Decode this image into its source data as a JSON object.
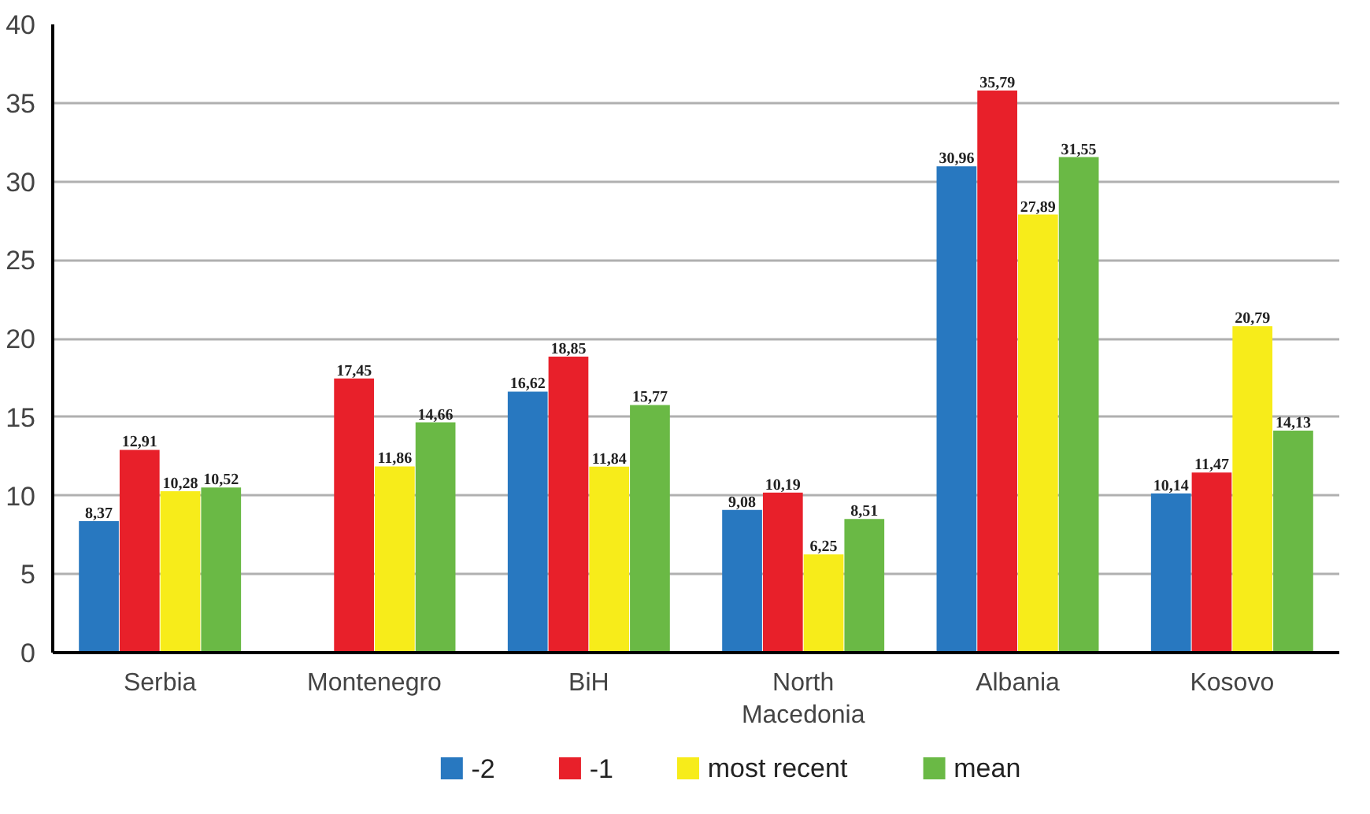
{
  "chart_data": {
    "type": "bar",
    "categories": [
      "Serbia",
      "Montenegro",
      "BiH",
      "North Macedonia",
      "Albania",
      "Kosovo"
    ],
    "series": [
      {
        "name": "-2",
        "color": "#2878c0",
        "values": [
          8.37,
          null,
          16.62,
          9.08,
          30.96,
          10.14
        ],
        "value_labels": [
          "8,37",
          null,
          "16,62",
          "9,08",
          "30,96",
          "10,14"
        ]
      },
      {
        "name": "-1",
        "color": "#e8202a",
        "values": [
          12.91,
          17.45,
          18.85,
          10.19,
          35.79,
          11.47
        ],
        "value_labels": [
          "12,91",
          "17,45",
          "18,85",
          "10,19",
          "35,79",
          "11,47"
        ]
      },
      {
        "name": "most recent",
        "color": "#f7ec1a",
        "values": [
          10.28,
          11.86,
          11.84,
          6.25,
          27.89,
          20.79
        ],
        "value_labels": [
          "10,28",
          "11,86",
          "11,84",
          "6,25",
          "27,89",
          "20,79"
        ]
      },
      {
        "name": "mean",
        "color": "#6ab945",
        "values": [
          10.52,
          14.66,
          15.77,
          8.51,
          31.55,
          14.13
        ],
        "value_labels": [
          "10,52",
          "14,66",
          "15,77",
          "8,51",
          "31,55",
          "14,13"
        ]
      }
    ],
    "ylim": [
      0,
      40
    ],
    "yticks": [
      0,
      5,
      10,
      15,
      20,
      25,
      30,
      35,
      40
    ],
    "grid": "y",
    "legend": "bottom"
  }
}
